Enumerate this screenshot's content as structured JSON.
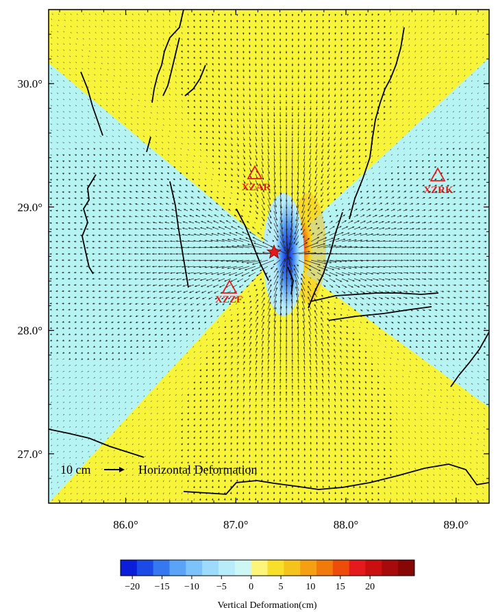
{
  "map": {
    "lon_range": [
      85.3,
      89.3
    ],
    "lat_range": [
      26.6,
      30.6
    ],
    "x_ticks": [
      {
        "value": 86.0,
        "label": "86.0°"
      },
      {
        "value": 87.0,
        "label": "87.0°"
      },
      {
        "value": 88.0,
        "label": "88.0°"
      },
      {
        "value": 89.0,
        "label": "89.0°"
      }
    ],
    "y_ticks": [
      {
        "value": 30.0,
        "label": "30.0°"
      },
      {
        "value": 29.0,
        "label": "29.0°"
      },
      {
        "value": 28.0,
        "label": "28.0°"
      },
      {
        "value": 27.0,
        "label": "27.0°"
      }
    ],
    "background_colors": {
      "positive": "#f8f43a",
      "negative": "#b6f4f4"
    },
    "epicenter": {
      "lon": 87.35,
      "lat": 28.65,
      "color": "#e41a1c"
    },
    "stations": [
      {
        "name": "XZAR",
        "lon": 87.18,
        "lat": 29.28
      },
      {
        "name": "XZRK",
        "lon": 88.85,
        "lat": 29.27
      },
      {
        "name": "XZZF",
        "lon": 86.93,
        "lat": 28.37
      }
    ],
    "legend": {
      "scale_text": "10 cm",
      "description": "Horizontal Deformation"
    }
  },
  "colorbar": {
    "title": "Vertical Deformation(cm)",
    "colors": [
      "#0b1fd8",
      "#1c4ae6",
      "#3778f0",
      "#5aa3f8",
      "#7cc2fb",
      "#9cdbfb",
      "#b7ecf8",
      "#cdf7f3",
      "#fdf47a",
      "#f8e02a",
      "#f6c21c",
      "#f4a012",
      "#f27a0b",
      "#ee4c0a",
      "#e41a1c",
      "#c90f0f",
      "#a60a0a",
      "#870606"
    ],
    "ticks": [
      {
        "value": -20,
        "label": "−20"
      },
      {
        "value": -15,
        "label": "−15"
      },
      {
        "value": -10,
        "label": "−10"
      },
      {
        "value": -5,
        "label": "−5"
      },
      {
        "value": 0,
        "label": "0"
      },
      {
        "value": 5,
        "label": "5"
      },
      {
        "value": 10,
        "label": "10"
      },
      {
        "value": 15,
        "label": "15"
      },
      {
        "value": 20,
        "label": "20"
      }
    ]
  }
}
